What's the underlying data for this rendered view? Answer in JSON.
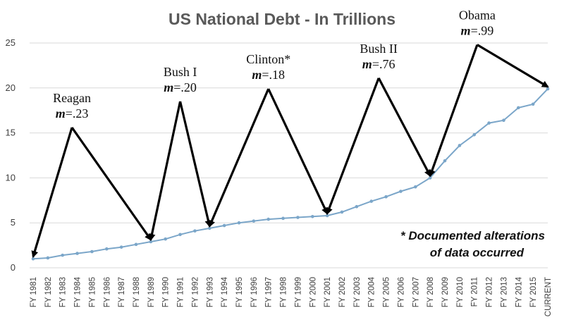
{
  "chart_data": {
    "type": "line",
    "title": "US National Debt - In Trillions",
    "xlabel": "",
    "ylabel": "",
    "ylim": [
      0,
      25
    ],
    "yticks": [
      0,
      5,
      10,
      15,
      20,
      25
    ],
    "grid": true,
    "legend": "none",
    "categories": [
      "FY 1981",
      "FY 1982",
      "FY 1983",
      "FY 1984",
      "FY 1985",
      "FY 1986",
      "FY 1987",
      "FY 1988",
      "FY 1989",
      "FY 1990",
      "FY 1991",
      "FY 1992",
      "FY 1993",
      "FY 1994",
      "FY 1995",
      "FY 1996",
      "FY 1997",
      "FY 1998",
      "FY 1999",
      "FY 2000",
      "FY 2001",
      "FY 2002",
      "FY 2003",
      "FY 2004",
      "FY 2005",
      "FY 2006",
      "FY 2007",
      "FY 2008",
      "FY 2009",
      "FY 2010",
      "FY 2011",
      "FY 2012",
      "FY 2013",
      "FY 2014",
      "FY 2015",
      "CURRENT"
    ],
    "series": [
      {
        "values": [
          1.0,
          1.1,
          1.4,
          1.6,
          1.8,
          2.1,
          2.3,
          2.6,
          2.9,
          3.2,
          3.7,
          4.1,
          4.4,
          4.7,
          5.0,
          5.2,
          5.4,
          5.5,
          5.6,
          5.7,
          5.8,
          6.2,
          6.8,
          7.4,
          7.9,
          8.5,
          9.0,
          10.0,
          11.9,
          13.6,
          14.8,
          16.1,
          16.4,
          17.8,
          18.2,
          19.9
        ]
      }
    ],
    "annotations": [
      {
        "id": "reagan",
        "name": "Reagan",
        "slope_label": "=.23",
        "peak_y": 15.6,
        "from": "FY 1981",
        "to": "FY 1989"
      },
      {
        "id": "bush1",
        "name": "Bush I",
        "slope_label": "=.20",
        "peak_y": 18.5,
        "from": "FY 1989",
        "to": "FY 1993"
      },
      {
        "id": "clinton",
        "name": "Clinton*",
        "slope_label": "=.18",
        "peak_y": 19.9,
        "from": "FY 1993",
        "to": "FY 2001"
      },
      {
        "id": "bush2",
        "name": "Bush II",
        "slope_label": "=.76",
        "peak_y": 21.1,
        "from": "FY 2001",
        "to": "FY 2008"
      },
      {
        "id": "obama",
        "name": "Obama",
        "slope_label": "=.99",
        "peak_y": 24.8,
        "from": "FY 2008",
        "to": "CURRENT"
      }
    ],
    "slope_symbol": "m",
    "note_lines": [
      "* Documented alterations",
      "of data occurred"
    ],
    "colors": {
      "line": "#7BA6C9",
      "marker": "#7BA6C9",
      "grid": "#D9D9D9",
      "arrows": "#000000",
      "title": "#595959"
    }
  }
}
